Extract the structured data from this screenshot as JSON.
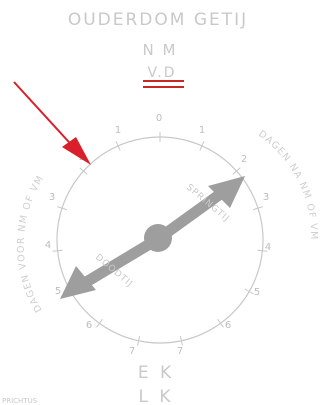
{
  "title": "OUDERDOM GETIJ",
  "top_label": "N M",
  "top_sub_label": "V.D",
  "bottom_label_1": "E K",
  "bottom_label_2": "L K",
  "corner_text": "PRICHTUS",
  "left_arc_text": "DAGEN VOOR NM OF VM",
  "right_arc_text": "DAGEN NA NM OF VM",
  "arrow_upper_label": "SPRINGTIJ",
  "arrow_lower_label": "DOODTIJ",
  "scale_numbers": [
    "0",
    "1",
    "1",
    "2",
    "2",
    "3",
    "3",
    "4",
    "4",
    "5",
    "5",
    "6",
    "6",
    "7",
    "7"
  ],
  "colors": {
    "red_arrow": "#d9202a",
    "red_lines": "#c62828",
    "needle": "#9e9e9e",
    "label_gray": "#c9c9c9"
  }
}
